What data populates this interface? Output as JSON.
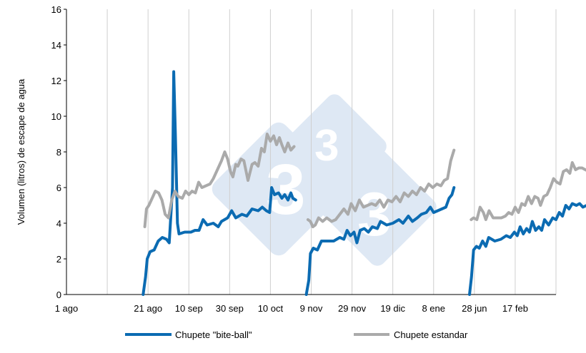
{
  "chart_data": {
    "type": "line",
    "title": "",
    "xlabel": "",
    "ylabel": "Volumen (litros) de escape de agua",
    "ylim": [
      0,
      16
    ],
    "yticks": [
      0,
      2,
      4,
      6,
      8,
      10,
      12,
      14,
      16
    ],
    "xticks": [
      "1 ago",
      "21 ago",
      "10 sep",
      "30 sep",
      "10 oct",
      "9 nov",
      "29 nov",
      "19 dic",
      "8 ene",
      "28 jun",
      "17 feb"
    ],
    "x_index_range": [
      0,
      12
    ],
    "grid": "vertical",
    "legend_position": "bottom",
    "series": [
      {
        "name": "Chupete \"bite-ball\"",
        "color": "#0b6bb2",
        "segments": [
          [
            [
              1.88,
              0.0
            ],
            [
              1.94,
              1.0
            ],
            [
              1.98,
              2.0
            ],
            [
              2.05,
              2.4
            ],
            [
              2.15,
              2.5
            ],
            [
              2.25,
              3.0
            ],
            [
              2.35,
              3.2
            ],
            [
              2.45,
              3.1
            ],
            [
              2.52,
              2.9
            ],
            [
              2.6,
              6.0
            ],
            [
              2.63,
              12.5
            ],
            [
              2.67,
              9.0
            ],
            [
              2.72,
              4.0
            ],
            [
              2.76,
              3.4
            ],
            [
              2.9,
              3.5
            ],
            [
              3.05,
              3.5
            ],
            [
              3.15,
              3.6
            ],
            [
              3.25,
              3.6
            ],
            [
              3.35,
              4.2
            ],
            [
              3.45,
              3.9
            ],
            [
              3.6,
              4.0
            ],
            [
              3.72,
              3.8
            ],
            [
              3.8,
              4.1
            ],
            [
              3.95,
              4.3
            ],
            [
              4.05,
              4.7
            ],
            [
              4.15,
              4.3
            ],
            [
              4.3,
              4.5
            ],
            [
              4.42,
              4.4
            ],
            [
              4.55,
              4.8
            ],
            [
              4.7,
              4.7
            ],
            [
              4.8,
              4.9
            ],
            [
              4.9,
              4.7
            ],
            [
              4.98,
              4.6
            ],
            [
              5.03,
              6.0
            ],
            [
              5.1,
              5.6
            ],
            [
              5.2,
              5.7
            ],
            [
              5.28,
              5.4
            ],
            [
              5.35,
              5.6
            ],
            [
              5.43,
              5.3
            ],
            [
              5.5,
              5.7
            ],
            [
              5.55,
              5.4
            ],
            [
              5.62,
              5.3
            ]
          ],
          [
            [
              5.88,
              0.0
            ],
            [
              5.94,
              0.8
            ],
            [
              5.98,
              2.3
            ],
            [
              6.05,
              2.6
            ],
            [
              6.15,
              2.5
            ],
            [
              6.25,
              3.0
            ],
            [
              6.4,
              3.0
            ],
            [
              6.55,
              3.0
            ],
            [
              6.7,
              3.2
            ],
            [
              6.8,
              3.1
            ],
            [
              6.88,
              3.6
            ],
            [
              6.96,
              3.3
            ],
            [
              7.05,
              3.5
            ],
            [
              7.12,
              2.9
            ],
            [
              7.2,
              3.6
            ],
            [
              7.3,
              3.7
            ],
            [
              7.4,
              3.5
            ],
            [
              7.5,
              3.8
            ],
            [
              7.62,
              3.7
            ],
            [
              7.7,
              4.1
            ],
            [
              7.85,
              3.9
            ],
            [
              8.0,
              4.0
            ],
            [
              8.15,
              4.2
            ],
            [
              8.25,
              4.0
            ],
            [
              8.38,
              4.4
            ],
            [
              8.48,
              4.1
            ],
            [
              8.6,
              4.3
            ],
            [
              8.7,
              4.5
            ],
            [
              8.82,
              4.6
            ],
            [
              8.92,
              4.9
            ],
            [
              9.0,
              4.6
            ],
            [
              9.1,
              4.7
            ],
            [
              9.2,
              4.8
            ],
            [
              9.3,
              4.9
            ],
            [
              9.38,
              5.4
            ],
            [
              9.45,
              5.6
            ],
            [
              9.5,
              6.0
            ]
          ],
          [
            [
              9.88,
              0.0
            ],
            [
              9.93,
              1.0
            ],
            [
              9.98,
              2.5
            ],
            [
              10.05,
              2.7
            ],
            [
              10.12,
              2.6
            ],
            [
              10.2,
              3.0
            ],
            [
              10.28,
              2.7
            ],
            [
              10.35,
              3.2
            ],
            [
              10.5,
              3.0
            ],
            [
              10.65,
              3.1
            ],
            [
              10.78,
              3.3
            ],
            [
              10.88,
              3.2
            ],
            [
              10.98,
              3.5
            ],
            [
              11.05,
              3.3
            ],
            [
              11.12,
              3.8
            ],
            [
              11.2,
              3.4
            ],
            [
              11.28,
              3.7
            ],
            [
              11.35,
              3.5
            ],
            [
              11.42,
              4.1
            ],
            [
              11.5,
              3.6
            ],
            [
              11.58,
              3.8
            ],
            [
              11.65,
              3.6
            ],
            [
              11.72,
              4.2
            ],
            [
              11.82,
              3.9
            ],
            [
              11.92,
              4.3
            ],
            [
              12.0,
              4.2
            ],
            [
              12.08,
              4.6
            ],
            [
              12.16,
              4.4
            ],
            [
              12.24,
              5.0
            ],
            [
              12.32,
              4.8
            ],
            [
              12.4,
              5.1
            ],
            [
              12.5,
              5.0
            ],
            [
              12.58,
              5.1
            ],
            [
              12.66,
              4.9
            ],
            [
              12.75,
              5.0
            ],
            [
              12.85,
              4.8
            ]
          ]
        ]
      },
      {
        "name": "Chupete estandar",
        "color": "#aaaaaa",
        "segments": [
          [
            [
              1.92,
              3.8
            ],
            [
              1.96,
              4.8
            ],
            [
              2.02,
              5.0
            ],
            [
              2.1,
              5.4
            ],
            [
              2.18,
              5.8
            ],
            [
              2.26,
              5.7
            ],
            [
              2.34,
              5.3
            ],
            [
              2.42,
              4.5
            ],
            [
              2.5,
              4.3
            ],
            [
              2.58,
              5.3
            ],
            [
              2.66,
              5.8
            ],
            [
              2.74,
              5.5
            ],
            [
              2.84,
              5.4
            ],
            [
              2.92,
              5.8
            ],
            [
              3.0,
              5.6
            ],
            [
              3.08,
              5.8
            ],
            [
              3.16,
              5.7
            ],
            [
              3.24,
              6.3
            ],
            [
              3.32,
              6.0
            ],
            [
              3.42,
              6.1
            ],
            [
              3.52,
              6.2
            ],
            [
              3.6,
              6.5
            ],
            [
              3.7,
              7.0
            ],
            [
              3.8,
              7.5
            ],
            [
              3.88,
              8.0
            ],
            [
              3.95,
              7.6
            ],
            [
              4.02,
              6.9
            ],
            [
              4.08,
              6.6
            ],
            [
              4.15,
              7.3
            ],
            [
              4.2,
              7.2
            ],
            [
              4.28,
              7.6
            ],
            [
              4.35,
              7.5
            ],
            [
              4.45,
              6.4
            ],
            [
              4.55,
              7.3
            ],
            [
              4.62,
              7.4
            ],
            [
              4.7,
              7.2
            ],
            [
              4.78,
              8.2
            ],
            [
              4.85,
              8.0
            ],
            [
              4.92,
              9.0
            ],
            [
              5.0,
              8.6
            ],
            [
              5.08,
              8.9
            ],
            [
              5.15,
              8.4
            ],
            [
              5.22,
              8.8
            ],
            [
              5.28,
              8.4
            ],
            [
              5.35,
              8.0
            ],
            [
              5.43,
              8.5
            ],
            [
              5.5,
              8.1
            ],
            [
              5.58,
              8.3
            ]
          ],
          [
            [
              5.92,
              4.2
            ],
            [
              5.98,
              4.1
            ],
            [
              6.04,
              3.8
            ],
            [
              6.1,
              3.9
            ],
            [
              6.18,
              4.3
            ],
            [
              6.28,
              4.1
            ],
            [
              6.38,
              4.3
            ],
            [
              6.5,
              4.1
            ],
            [
              6.6,
              4.2
            ],
            [
              6.7,
              4.5
            ],
            [
              6.8,
              4.8
            ],
            [
              6.9,
              4.5
            ],
            [
              6.98,
              5.1
            ],
            [
              7.08,
              4.7
            ],
            [
              7.18,
              5.3
            ],
            [
              7.28,
              4.9
            ],
            [
              7.38,
              5.0
            ],
            [
              7.48,
              5.1
            ],
            [
              7.58,
              5.0
            ],
            [
              7.68,
              5.3
            ],
            [
              7.78,
              4.9
            ],
            [
              7.88,
              5.3
            ],
            [
              7.98,
              5.2
            ],
            [
              8.08,
              5.5
            ],
            [
              8.18,
              5.2
            ],
            [
              8.28,
              5.7
            ],
            [
              8.38,
              5.5
            ],
            [
              8.48,
              5.8
            ],
            [
              8.58,
              5.6
            ],
            [
              8.68,
              6.0
            ],
            [
              8.78,
              5.8
            ],
            [
              8.88,
              6.2
            ],
            [
              8.98,
              6.0
            ],
            [
              9.08,
              6.2
            ],
            [
              9.18,
              6.1
            ],
            [
              9.26,
              6.4
            ],
            [
              9.34,
              6.5
            ],
            [
              9.42,
              7.5
            ],
            [
              9.5,
              8.1
            ]
          ],
          [
            [
              9.92,
              4.2
            ],
            [
              9.98,
              4.3
            ],
            [
              10.06,
              4.2
            ],
            [
              10.14,
              4.9
            ],
            [
              10.22,
              4.6
            ],
            [
              10.28,
              4.2
            ],
            [
              10.36,
              4.7
            ],
            [
              10.46,
              4.3
            ],
            [
              10.56,
              4.3
            ],
            [
              10.66,
              4.3
            ],
            [
              10.76,
              4.4
            ],
            [
              10.84,
              4.6
            ],
            [
              10.92,
              4.5
            ],
            [
              11.0,
              4.9
            ],
            [
              11.08,
              4.6
            ],
            [
              11.16,
              5.1
            ],
            [
              11.24,
              5.0
            ],
            [
              11.32,
              5.5
            ],
            [
              11.4,
              5.1
            ],
            [
              11.48,
              5.5
            ],
            [
              11.56,
              5.4
            ],
            [
              11.62,
              5.0
            ],
            [
              11.7,
              5.5
            ],
            [
              11.78,
              5.6
            ],
            [
              11.86,
              6.0
            ],
            [
              11.94,
              6.5
            ],
            [
              12.02,
              6.3
            ],
            [
              12.1,
              6.2
            ],
            [
              12.18,
              6.9
            ],
            [
              12.26,
              7.0
            ],
            [
              12.34,
              6.8
            ],
            [
              12.4,
              7.4
            ],
            [
              12.48,
              7.0
            ],
            [
              12.56,
              7.1
            ],
            [
              12.64,
              7.1
            ],
            [
              12.72,
              7.0
            ],
            [
              12.8,
              6.9
            ]
          ]
        ]
      }
    ]
  }
}
